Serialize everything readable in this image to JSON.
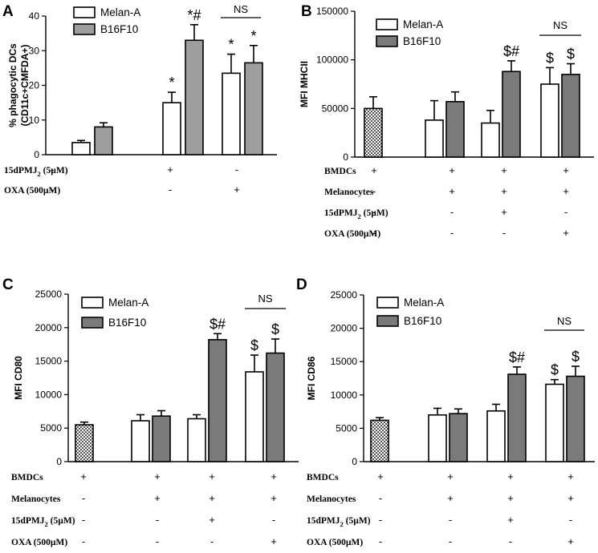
{
  "chart_data": [
    {
      "id": "A",
      "type": "bar",
      "panel_letter": "A",
      "ylabel_lines": [
        "% phagocytic DCs",
        "(CD11c+CMFDA+)"
      ],
      "ylim": [
        0,
        40
      ],
      "yticks": [
        0,
        10,
        20,
        30,
        40
      ],
      "ytick_labels": [
        "0",
        "10",
        "20",
        "30",
        "40"
      ],
      "legend": [
        {
          "name": "Melan-A",
          "color": "#ffffff"
        },
        {
          "name": "B16F10",
          "color": "#9e9e9e"
        }
      ],
      "bars": [
        {
          "value": 3.5,
          "error": 0.6,
          "color": "#ffffff",
          "pattern": "none",
          "annotation": ""
        },
        {
          "value": 8.0,
          "error": 1.2,
          "color": "#9e9e9e",
          "pattern": "none",
          "annotation": ""
        },
        {
          "value": 15.0,
          "error": 3.0,
          "color": "#ffffff",
          "pattern": "none",
          "annotation": "*"
        },
        {
          "value": 33.0,
          "error": 4.5,
          "color": "#9e9e9e",
          "pattern": "none",
          "annotation": "*#"
        },
        {
          "value": 23.5,
          "error": 5.5,
          "color": "#ffffff",
          "pattern": "none",
          "annotation": "*"
        },
        {
          "value": 26.5,
          "error": 5.0,
          "color": "#9e9e9e",
          "pattern": "none",
          "annotation": "*"
        }
      ],
      "ns_label": "NS",
      "conditions": [
        {
          "label": "15dPMJ",
          "label_sub": "2",
          "label_suffix": " (5µM)",
          "signs": [
            "-",
            "+",
            "-"
          ]
        },
        {
          "label": "OXA (500µM)",
          "label_sub": "",
          "label_suffix": "",
          "signs": [
            "-",
            "-",
            "+"
          ]
        }
      ]
    },
    {
      "id": "B",
      "type": "bar",
      "panel_letter": "B",
      "ylabel_lines": [
        "MFI MHCII"
      ],
      "ylim": [
        0,
        150000
      ],
      "yticks": [
        0,
        50000,
        100000,
        150000
      ],
      "ytick_labels": [
        "0",
        "50000",
        "100000",
        "150000"
      ],
      "legend": [
        {
          "name": "Melan-A",
          "color": "#ffffff"
        },
        {
          "name": "B16F10",
          "color": "#7a7a7a"
        }
      ],
      "bars": [
        {
          "value": 50000,
          "error": 12000,
          "color": "#ffffff",
          "pattern": "checker",
          "annotation": ""
        },
        {
          "value": 38000,
          "error": 20000,
          "color": "#ffffff",
          "pattern": "none",
          "annotation": ""
        },
        {
          "value": 57000,
          "error": 10000,
          "color": "#7a7a7a",
          "pattern": "none",
          "annotation": ""
        },
        {
          "value": 35000,
          "error": 13000,
          "color": "#ffffff",
          "pattern": "none",
          "annotation": ""
        },
        {
          "value": 88000,
          "error": 11000,
          "color": "#7a7a7a",
          "pattern": "none",
          "annotation": "$#"
        },
        {
          "value": 75000,
          "error": 17000,
          "color": "#ffffff",
          "pattern": "none",
          "annotation": "$"
        },
        {
          "value": 85000,
          "error": 11000,
          "color": "#7a7a7a",
          "pattern": "none",
          "annotation": "$"
        }
      ],
      "ns_label": "NS",
      "conditions": [
        {
          "label": "BMDCs",
          "label_sub": "",
          "label_suffix": "",
          "signs": [
            "+",
            "+",
            "+",
            "+"
          ]
        },
        {
          "label": "Melanocytes",
          "label_sub": "",
          "label_suffix": "",
          "signs": [
            "-",
            "+",
            "+",
            "+"
          ]
        },
        {
          "label": "15dPMJ",
          "label_sub": "2",
          "label_suffix": " (5µM)",
          "signs": [
            "-",
            "-",
            "+",
            "-"
          ]
        },
        {
          "label": "OXA (500µM)",
          "label_sub": "",
          "label_suffix": "",
          "signs": [
            "-",
            "-",
            "-",
            "+"
          ]
        }
      ]
    },
    {
      "id": "C",
      "type": "bar",
      "panel_letter": "C",
      "ylabel_lines": [
        "MFI CD80"
      ],
      "ylim": [
        0,
        25000
      ],
      "yticks": [
        0,
        5000,
        10000,
        15000,
        20000,
        25000
      ],
      "ytick_labels": [
        "0",
        "5000",
        "10000",
        "15000",
        "20000",
        "25000"
      ],
      "legend": [
        {
          "name": "Melan-A",
          "color": "#ffffff"
        },
        {
          "name": "B16F10",
          "color": "#7a7a7a"
        }
      ],
      "bars": [
        {
          "value": 5500,
          "error": 400,
          "color": "#ffffff",
          "pattern": "checker",
          "annotation": ""
        },
        {
          "value": 6100,
          "error": 900,
          "color": "#ffffff",
          "pattern": "none",
          "annotation": ""
        },
        {
          "value": 6800,
          "error": 800,
          "color": "#7a7a7a",
          "pattern": "none",
          "annotation": ""
        },
        {
          "value": 6400,
          "error": 600,
          "color": "#ffffff",
          "pattern": "none",
          "annotation": ""
        },
        {
          "value": 18200,
          "error": 900,
          "color": "#7a7a7a",
          "pattern": "none",
          "annotation": "$#"
        },
        {
          "value": 13400,
          "error": 2500,
          "color": "#ffffff",
          "pattern": "none",
          "annotation": "$"
        },
        {
          "value": 16200,
          "error": 2100,
          "color": "#7a7a7a",
          "pattern": "none",
          "annotation": "$"
        }
      ],
      "ns_label": "NS",
      "conditions": [
        {
          "label": "BMDCs",
          "label_sub": "",
          "label_suffix": "",
          "signs": [
            "+",
            "+",
            "+",
            "+"
          ]
        },
        {
          "label": "Melanocytes",
          "label_sub": "",
          "label_suffix": "",
          "signs": [
            "-",
            "+",
            "+",
            "+"
          ]
        },
        {
          "label": "15dPMJ",
          "label_sub": "2",
          "label_suffix": " (5µM)",
          "signs": [
            "-",
            "-",
            "+",
            "-"
          ]
        },
        {
          "label": "OXA (500µM)",
          "label_sub": "",
          "label_suffix": "",
          "signs": [
            "-",
            "-",
            "-",
            "+"
          ]
        }
      ]
    },
    {
      "id": "D",
      "type": "bar",
      "panel_letter": "D",
      "ylabel_lines": [
        "MFI CD86"
      ],
      "ylim": [
        0,
        25000
      ],
      "yticks": [
        0,
        5000,
        10000,
        15000,
        20000,
        25000
      ],
      "ytick_labels": [
        "0",
        "5000",
        "10000",
        "15000",
        "20000",
        "25000"
      ],
      "legend": [
        {
          "name": "Melan-A",
          "color": "#ffffff"
        },
        {
          "name": "B16F10",
          "color": "#7a7a7a"
        }
      ],
      "bars": [
        {
          "value": 6200,
          "error": 400,
          "color": "#ffffff",
          "pattern": "checker",
          "annotation": ""
        },
        {
          "value": 7000,
          "error": 1000,
          "color": "#ffffff",
          "pattern": "none",
          "annotation": ""
        },
        {
          "value": 7200,
          "error": 700,
          "color": "#7a7a7a",
          "pattern": "none",
          "annotation": ""
        },
        {
          "value": 7600,
          "error": 1000,
          "color": "#ffffff",
          "pattern": "none",
          "annotation": ""
        },
        {
          "value": 13100,
          "error": 1100,
          "color": "#7a7a7a",
          "pattern": "none",
          "annotation": "$#"
        },
        {
          "value": 11600,
          "error": 700,
          "color": "#ffffff",
          "pattern": "none",
          "annotation": "$"
        },
        {
          "value": 12800,
          "error": 1500,
          "color": "#7a7a7a",
          "pattern": "none",
          "annotation": "$"
        }
      ],
      "ns_label": "NS",
      "conditions": [
        {
          "label": "BMDCs",
          "label_sub": "",
          "label_suffix": "",
          "signs": [
            "+",
            "+",
            "+",
            "+"
          ]
        },
        {
          "label": "Melanocytes",
          "label_sub": "",
          "label_suffix": "",
          "signs": [
            "-",
            "+",
            "+",
            "+"
          ]
        },
        {
          "label": "15dPMJ",
          "label_sub": "2",
          "label_suffix": " (5µM)",
          "signs": [
            "-",
            "-",
            "+",
            "-"
          ]
        },
        {
          "label": "OXA (500µM)",
          "label_sub": "",
          "label_suffix": "",
          "signs": [
            "-",
            "-",
            "-",
            "+"
          ]
        }
      ]
    }
  ]
}
